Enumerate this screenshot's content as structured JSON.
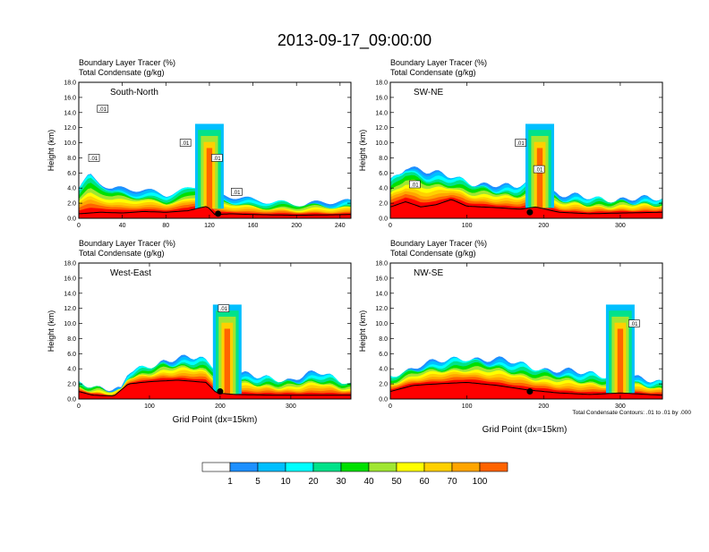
{
  "title": "2013-09-17_09:00:00",
  "panel_title_1": "Boundary Layer Tracer    (%)",
  "panel_title_2": "Total Condensate    (g/kg)",
  "ylabel": "Height (km)",
  "xlabel": "Grid Point (dx=15km)",
  "contour_note": "Total Condensate Contours: .01 to .01 by .000",
  "contour_label": ".01",
  "colorbar": {
    "levels": [
      "1",
      "5",
      "10",
      "20",
      "30",
      "40",
      "50",
      "60",
      "70",
      "100"
    ],
    "colors": [
      "#ffffff",
      "#1e90ff",
      "#00bfff",
      "#00ffff",
      "#00e28a",
      "#00e000",
      "#a0e632",
      "#ffff00",
      "#ffd000",
      "#ffa500",
      "#ff6400",
      "#ff0000"
    ]
  },
  "chart_data": [
    {
      "type": "heatmap",
      "section": "South-North",
      "xlim": [
        0,
        250
      ],
      "xticks": [
        "0",
        "40",
        "80",
        "120",
        "160",
        "200",
        "240"
      ],
      "ylim": [
        0,
        18
      ],
      "yticks": [
        "0.0",
        "2.0",
        "4.0",
        "6.0",
        "8.0",
        "10.0",
        "12.0",
        "14.0",
        "16.0",
        "18.0"
      ],
      "terrain_km": [
        [
          0,
          0.6
        ],
        [
          20,
          0.8
        ],
        [
          40,
          0.7
        ],
        [
          60,
          0.9
        ],
        [
          80,
          0.8
        ],
        [
          100,
          1.0
        ],
        [
          118,
          1.6
        ],
        [
          125,
          0.5
        ],
        [
          140,
          0.6
        ],
        [
          160,
          0.5
        ],
        [
          200,
          0.4
        ],
        [
          250,
          0.5
        ]
      ],
      "pbl_top_km": [
        [
          0,
          4
        ],
        [
          10,
          6
        ],
        [
          30,
          4
        ],
        [
          60,
          3.5
        ],
        [
          80,
          3
        ],
        [
          100,
          4
        ],
        [
          118,
          5
        ],
        [
          130,
          3
        ],
        [
          160,
          2.2
        ],
        [
          200,
          2
        ],
        [
          250,
          2
        ]
      ],
      "tower_x": [
        120
      ],
      "marker": {
        "x": 128,
        "y_km": 0.6
      },
      "contour_labels": [
        [
          14,
          8
        ],
        [
          22,
          14.5
        ],
        [
          98,
          10
        ],
        [
          127,
          8
        ],
        [
          145,
          3.5
        ]
      ]
    },
    {
      "type": "heatmap",
      "section": "SW-NE",
      "xlim": [
        0,
        355
      ],
      "xticks": [
        "0",
        "100",
        "200",
        "300"
      ],
      "ylim": [
        0,
        18
      ],
      "yticks": [
        "0.0",
        "2.0",
        "4.0",
        "6.0",
        "8.0",
        "10.0",
        "12.0",
        "14.0",
        "16.0",
        "18.0"
      ],
      "terrain_km": [
        [
          0,
          1.5
        ],
        [
          20,
          2.2
        ],
        [
          40,
          1.5
        ],
        [
          60,
          1.8
        ],
        [
          80,
          2.5
        ],
        [
          100,
          1.6
        ],
        [
          140,
          1.4
        ],
        [
          170,
          1.2
        ],
        [
          190,
          1.5
        ],
        [
          220,
          0.8
        ],
        [
          260,
          0.6
        ],
        [
          300,
          0.7
        ],
        [
          355,
          0.8
        ]
      ],
      "pbl_top_km": [
        [
          0,
          5
        ],
        [
          20,
          7
        ],
        [
          50,
          6
        ],
        [
          80,
          5.5
        ],
        [
          120,
          4.5
        ],
        [
          160,
          4
        ],
        [
          185,
          5
        ],
        [
          220,
          3
        ],
        [
          280,
          2.5
        ],
        [
          355,
          2.5
        ]
      ],
      "tower_x": [
        195
      ],
      "marker": {
        "x": 182,
        "y_km": 0.8
      },
      "contour_labels": [
        [
          32,
          4.5
        ],
        [
          170,
          10
        ],
        [
          194,
          6.5
        ]
      ]
    },
    {
      "type": "heatmap",
      "section": "West-East",
      "xlim": [
        0,
        385
      ],
      "xticks": [
        "0",
        "100",
        "200",
        "300"
      ],
      "ylim": [
        0,
        18
      ],
      "yticks": [
        "0.0",
        "2.0",
        "4.0",
        "6.0",
        "8.0",
        "10.0",
        "12.0",
        "14.0",
        "16.0",
        "18.0"
      ],
      "terrain_km": [
        [
          0,
          1.0
        ],
        [
          20,
          0.5
        ],
        [
          50,
          0.4
        ],
        [
          70,
          2.0
        ],
        [
          100,
          2.3
        ],
        [
          140,
          2.5
        ],
        [
          180,
          2.2
        ],
        [
          195,
          0.8
        ],
        [
          220,
          0.6
        ],
        [
          280,
          0.5
        ],
        [
          330,
          0.5
        ],
        [
          385,
          0.5
        ]
      ],
      "pbl_top_km": [
        [
          0,
          2
        ],
        [
          60,
          1
        ],
        [
          70,
          3.5
        ],
        [
          120,
          5
        ],
        [
          170,
          5.5
        ],
        [
          200,
          4
        ],
        [
          240,
          3
        ],
        [
          300,
          2.5
        ],
        [
          340,
          3.5
        ],
        [
          385,
          2
        ]
      ],
      "tower_x": [
        210
      ],
      "marker": {
        "x": 200,
        "y_km": 1.0
      },
      "contour_labels": [
        [
          205,
          12
        ]
      ]
    },
    {
      "type": "heatmap",
      "section": "NW-SE",
      "xlim": [
        0,
        355
      ],
      "xticks": [
        "0",
        "100",
        "200",
        "300"
      ],
      "ylim": [
        0,
        18
      ],
      "yticks": [
        "0.0",
        "2.0",
        "4.0",
        "6.0",
        "8.0",
        "10.0",
        "12.0",
        "14.0",
        "16.0",
        "18.0"
      ],
      "terrain_km": [
        [
          0,
          1.0
        ],
        [
          30,
          1.8
        ],
        [
          60,
          2.0
        ],
        [
          100,
          2.2
        ],
        [
          140,
          1.8
        ],
        [
          180,
          1.2
        ],
        [
          220,
          0.8
        ],
        [
          260,
          0.6
        ],
        [
          300,
          0.8
        ],
        [
          355,
          0.5
        ]
      ],
      "pbl_top_km": [
        [
          0,
          3
        ],
        [
          40,
          4.5
        ],
        [
          100,
          5.5
        ],
        [
          150,
          5
        ],
        [
          200,
          4
        ],
        [
          240,
          3.5
        ],
        [
          290,
          3
        ],
        [
          330,
          2.5
        ],
        [
          355,
          2
        ]
      ],
      "tower_x": [
        300
      ],
      "marker": {
        "x": 182,
        "y_km": 1.0
      },
      "contour_labels": [
        [
          318,
          10
        ]
      ]
    }
  ]
}
